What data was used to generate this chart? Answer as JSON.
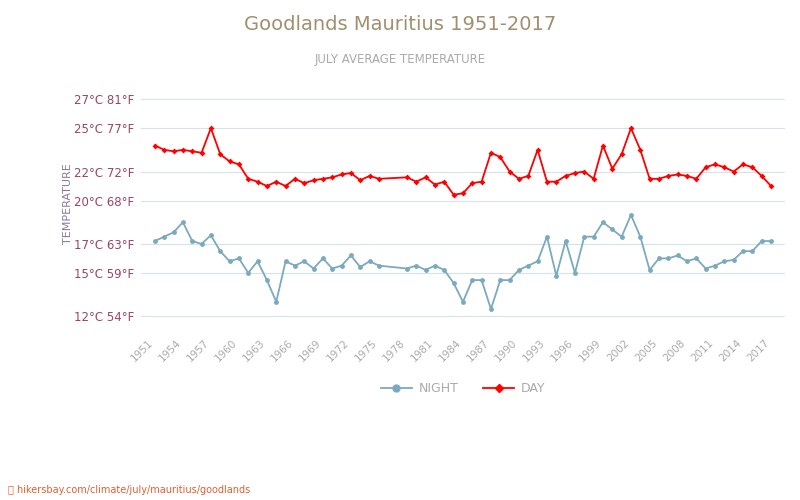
{
  "title": "Goodlands Mauritius 1951-2017",
  "subtitle": "JULY AVERAGE TEMPERATURE",
  "ylabel": "TEMPERATURE",
  "years": [
    1951,
    1952,
    1953,
    1954,
    1955,
    1956,
    1957,
    1958,
    1959,
    1960,
    1961,
    1962,
    1963,
    1964,
    1965,
    1966,
    1967,
    1968,
    1969,
    1970,
    1971,
    1972,
    1973,
    1974,
    1975,
    1978,
    1979,
    1980,
    1981,
    1982,
    1983,
    1984,
    1985,
    1986,
    1987,
    1988,
    1989,
    1990,
    1991,
    1992,
    1993,
    1994,
    1995,
    1996,
    1997,
    1998,
    1999,
    2000,
    2001,
    2002,
    2003,
    2004,
    2005,
    2006,
    2007,
    2008,
    2009,
    2010,
    2011,
    2012,
    2013,
    2014,
    2015,
    2016,
    2017
  ],
  "day_temps": [
    23.8,
    23.5,
    23.4,
    23.5,
    23.4,
    23.3,
    25.0,
    23.2,
    22.7,
    22.5,
    21.5,
    21.3,
    21.0,
    21.3,
    21.0,
    21.5,
    21.2,
    21.4,
    21.5,
    21.6,
    21.8,
    21.9,
    21.4,
    21.7,
    21.5,
    21.6,
    21.3,
    21.6,
    21.1,
    21.3,
    20.4,
    20.5,
    21.2,
    21.3,
    23.3,
    23.0,
    22.0,
    21.5,
    21.7,
    23.5,
    21.3,
    21.3,
    21.7,
    21.9,
    22.0,
    21.5,
    23.8,
    22.2,
    23.2,
    25.0,
    23.5,
    21.5,
    21.5,
    21.7,
    21.8,
    21.7,
    21.5,
    22.3,
    22.5,
    22.3,
    22.0,
    22.5,
    22.3,
    21.7,
    21.0
  ],
  "night_temps": [
    17.2,
    17.5,
    17.8,
    18.5,
    17.2,
    17.0,
    17.6,
    16.5,
    15.8,
    16.0,
    15.0,
    15.8,
    14.5,
    13.0,
    15.8,
    15.5,
    15.8,
    15.3,
    16.0,
    15.3,
    15.5,
    16.2,
    15.4,
    15.8,
    15.5,
    15.3,
    15.5,
    15.2,
    15.5,
    15.2,
    14.3,
    13.0,
    14.5,
    14.5,
    12.5,
    14.5,
    14.5,
    15.2,
    15.5,
    15.8,
    17.5,
    14.8,
    17.2,
    15.0,
    17.5,
    17.5,
    18.5,
    18.0,
    17.5,
    19.0,
    17.5,
    15.2,
    16.0,
    16.0,
    16.2,
    15.8,
    16.0,
    15.3,
    15.5,
    15.8,
    15.9,
    16.5,
    16.5,
    17.2,
    17.2
  ],
  "day_color": "#ff0000",
  "night_color": "#7baabe",
  "background_color": "#ffffff",
  "grid_color": "#d5e2ec",
  "ytick_labels": [
    "12°C 54°F",
    "15°C 59°F",
    "17°C 63°F",
    "20°C 68°F",
    "22°C 72°F",
    "25°C 77°F",
    "27°C 81°F"
  ],
  "ytick_values": [
    12,
    15,
    17,
    20,
    22,
    25,
    27
  ],
  "ylim": [
    11,
    28.5
  ],
  "xlim": [
    1949.5,
    2018.5
  ],
  "xtick_years": [
    1951,
    1954,
    1957,
    1960,
    1963,
    1966,
    1969,
    1972,
    1975,
    1978,
    1981,
    1984,
    1987,
    1990,
    1993,
    1996,
    1999,
    2002,
    2005,
    2008,
    2011,
    2014,
    2017
  ],
  "legend_night": "NIGHT",
  "legend_day": "DAY",
  "footer_text": "hikersbay.com/climate/july/mauritius/goodlands",
  "title_color": "#a09070",
  "subtitle_color": "#aaaaaa",
  "ylabel_color": "#8878a0",
  "ytick_color": "#994466",
  "xtick_color": "#aaaaaa",
  "footer_color": "#e06030"
}
